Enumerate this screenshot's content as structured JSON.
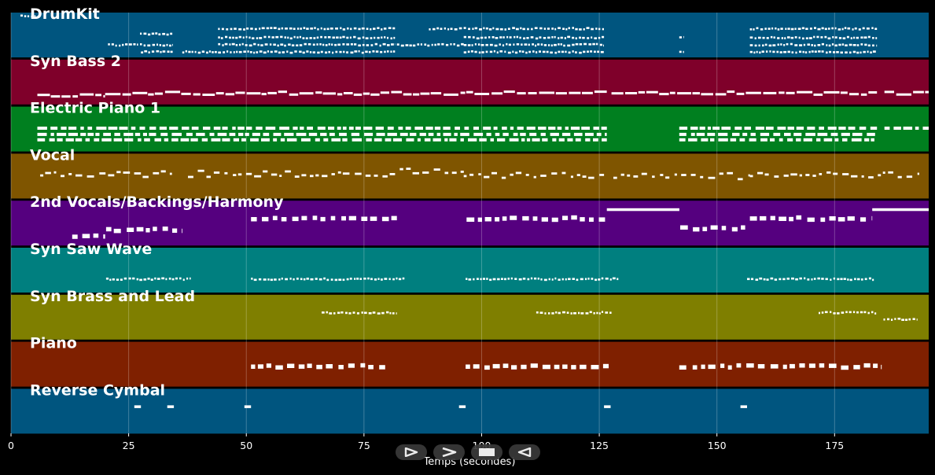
{
  "chart_data": {
    "type": "piano-roll",
    "xlabel": "Temps (secondes)",
    "xlim": [
      0,
      195
    ],
    "xticks": [
      0,
      25,
      50,
      75,
      100,
      125,
      150,
      175
    ],
    "grid": true,
    "tracks": [
      {
        "name": "DrumKit",
        "color": "#00557f",
        "notes": [
          {
            "start": 2,
            "end": 5.2,
            "pitch": 0.92
          },
          {
            "start": 20.6,
            "end": 27,
            "pitch": 0.28
          },
          {
            "start": 27.4,
            "end": 34.4,
            "pitch": 0.52
          },
          {
            "start": 27.4,
            "end": 34.4,
            "pitch": 0.28
          },
          {
            "start": 27.6,
            "end": 34.4,
            "pitch": 0.12
          },
          {
            "start": 36.4,
            "end": 44,
            "pitch": 0.12
          },
          {
            "start": 44,
            "end": 81.6,
            "pitch": 0.64
          },
          {
            "start": 44,
            "end": 81.6,
            "pitch": 0.44
          },
          {
            "start": 44,
            "end": 81.6,
            "pitch": 0.28
          },
          {
            "start": 44,
            "end": 81.6,
            "pitch": 0.12
          },
          {
            "start": 82,
            "end": 96.2,
            "pitch": 0.28
          },
          {
            "start": 88.8,
            "end": 126,
            "pitch": 0.64
          },
          {
            "start": 96.2,
            "end": 126,
            "pitch": 0.44
          },
          {
            "start": 96.2,
            "end": 126,
            "pitch": 0.28
          },
          {
            "start": 96.2,
            "end": 126,
            "pitch": 0.12
          },
          {
            "start": 142,
            "end": 143,
            "pitch": 0.44
          },
          {
            "start": 142,
            "end": 143,
            "pitch": 0.12
          },
          {
            "start": 157,
            "end": 184,
            "pitch": 0.64
          },
          {
            "start": 157,
            "end": 184,
            "pitch": 0.44
          },
          {
            "start": 157,
            "end": 184,
            "pitch": 0.28
          },
          {
            "start": 157,
            "end": 184,
            "pitch": 0.12
          }
        ]
      },
      {
        "name": "Syn Bass 2",
        "color": "#7f002a",
        "notes": [
          {
            "start": 5.6,
            "end": 20,
            "pitch": 0.2
          },
          {
            "start": 20,
            "end": 126.6,
            "pitch": 0.25
          },
          {
            "start": 127.6,
            "end": 184,
            "pitch": 0.25
          },
          {
            "start": 185.6,
            "end": 195,
            "pitch": 0.25
          }
        ]
      },
      {
        "name": "Electric Piano 1",
        "color": "#007f1f",
        "notes": [
          {
            "start": 5.6,
            "end": 126.6,
            "pitch": 0.52
          },
          {
            "start": 5.6,
            "end": 126.6,
            "pitch": 0.38
          },
          {
            "start": 5.6,
            "end": 126.6,
            "pitch": 0.26
          },
          {
            "start": 142,
            "end": 184,
            "pitch": 0.52
          },
          {
            "start": 142,
            "end": 184,
            "pitch": 0.38
          },
          {
            "start": 142,
            "end": 184,
            "pitch": 0.26
          },
          {
            "start": 185.6,
            "end": 195,
            "pitch": 0.52
          }
        ]
      },
      {
        "name": "Vocal",
        "color": "#7f5500",
        "notes": [
          {
            "start": 6.2,
            "end": 34.2,
            "pitch": 0.55
          },
          {
            "start": 37.6,
            "end": 81.6,
            "pitch": 0.55
          },
          {
            "start": 82.6,
            "end": 96.2,
            "pitch": 0.6
          },
          {
            "start": 96.2,
            "end": 126,
            "pitch": 0.52
          },
          {
            "start": 128,
            "end": 157,
            "pitch": 0.5
          },
          {
            "start": 157,
            "end": 193,
            "pitch": 0.52
          }
        ]
      },
      {
        "name": "2nd Vocals/Backings/Harmony",
        "color": "#55007f",
        "notes": [
          {
            "start": 13,
            "end": 20,
            "pitch": 0.22
          },
          {
            "start": 20.2,
            "end": 36.4,
            "pitch": 0.35
          },
          {
            "start": 51,
            "end": 82,
            "pitch": 0.6
          },
          {
            "start": 96.8,
            "end": 126.6,
            "pitch": 0.6
          },
          {
            "start": 126.6,
            "end": 142,
            "pitch": 0.8
          },
          {
            "start": 142.2,
            "end": 156,
            "pitch": 0.38
          },
          {
            "start": 157,
            "end": 183,
            "pitch": 0.6
          },
          {
            "start": 183,
            "end": 195,
            "pitch": 0.8
          }
        ]
      },
      {
        "name": "Syn Saw Wave",
        "color": "#007f7f",
        "notes": [
          {
            "start": 20.2,
            "end": 38.2,
            "pitch": 0.3
          },
          {
            "start": 51,
            "end": 83.6,
            "pitch": 0.3
          },
          {
            "start": 96.6,
            "end": 129.2,
            "pitch": 0.3
          },
          {
            "start": 156.4,
            "end": 183.6,
            "pitch": 0.3
          }
        ]
      },
      {
        "name": "Syn Brass and Lead",
        "color": "#7f7f00",
        "notes": [
          {
            "start": 66,
            "end": 82,
            "pitch": 0.6
          },
          {
            "start": 111.6,
            "end": 127.6,
            "pitch": 0.6
          },
          {
            "start": 171.6,
            "end": 184,
            "pitch": 0.6
          },
          {
            "start": 185.4,
            "end": 192.6,
            "pitch": 0.45
          }
        ]
      },
      {
        "name": "Piano",
        "color": "#7f2000",
        "notes": [
          {
            "start": 51,
            "end": 80,
            "pitch": 0.45
          },
          {
            "start": 96.6,
            "end": 127,
            "pitch": 0.45
          },
          {
            "start": 142,
            "end": 185,
            "pitch": 0.45
          }
        ]
      },
      {
        "name": "Reverse Cymbal",
        "color": "#00557f",
        "notes": [
          {
            "start": 26.2,
            "end": 27.6,
            "pitch": 0.6
          },
          {
            "start": 33.2,
            "end": 34.6,
            "pitch": 0.6
          },
          {
            "start": 49.6,
            "end": 51,
            "pitch": 0.6
          },
          {
            "start": 95.2,
            "end": 96.6,
            "pitch": 0.6
          },
          {
            "start": 126,
            "end": 127.4,
            "pitch": 0.6
          },
          {
            "start": 155,
            "end": 156.4,
            "pitch": 0.6
          }
        ]
      }
    ]
  },
  "controls": {
    "play_glyph": "play-icon",
    "forward_glyph": "fast-forward-icon",
    "stop_glyph": "stop-icon",
    "rewind_glyph": "rewind-icon"
  }
}
